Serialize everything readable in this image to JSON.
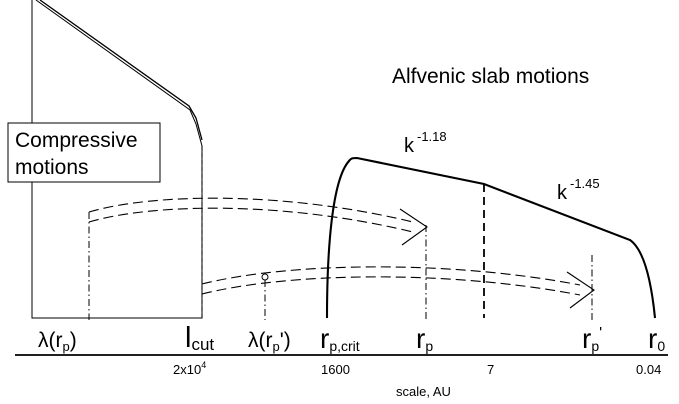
{
  "title": "Alfvenic slab motions",
  "compressive_label": {
    "line1": "Compressive",
    "line2": "motions"
  },
  "slopes": {
    "first": {
      "base": "k",
      "exp": "-1.18"
    },
    "second": {
      "base": "k",
      "exp": "-1.45"
    }
  },
  "scale_markers": [
    {
      "id": "lambda-rp",
      "main": "λ(r",
      "sub": "p",
      "tail": ")"
    },
    {
      "id": "l-cut",
      "main": "l",
      "sub": "cut",
      "tail": ""
    },
    {
      "id": "lambda-rp-prime",
      "main": "λ(r",
      "sub": "p",
      "tail": "')"
    },
    {
      "id": "r-p-crit",
      "main": "r",
      "sub": "p,crit",
      "tail": ""
    },
    {
      "id": "r-p",
      "main": "r",
      "sub": "p",
      "tail": ""
    },
    {
      "id": "r-p-prime",
      "main": "r",
      "sub": "p",
      "tail": "'"
    },
    {
      "id": "r-0",
      "main": "r",
      "sub": "0",
      "tail": ""
    }
  ],
  "axis": {
    "label": "scale, AU",
    "ticks": [
      {
        "id": "tick-2x10-4",
        "base": "2x10",
        "exp": "4"
      },
      {
        "id": "tick-1600",
        "base": "1600",
        "exp": ""
      },
      {
        "id": "tick-7",
        "base": "7",
        "exp": ""
      },
      {
        "id": "tick-0-04",
        "base": "0.04",
        "exp": ""
      }
    ]
  },
  "colors": {
    "line": "#000000",
    "background": "#ffffff"
  }
}
